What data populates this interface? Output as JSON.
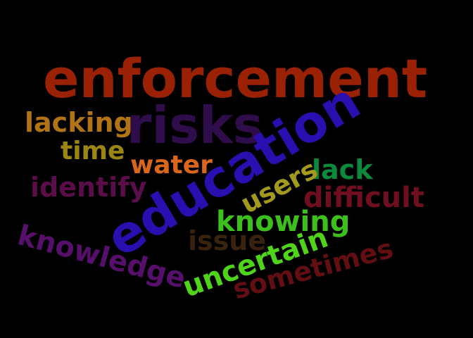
{
  "background": "#000000",
  "words": [
    {
      "text": "enforcement",
      "color": "#9b2105",
      "rotation": "horizontal"
    },
    {
      "text": "risks",
      "color": "#2f0d4a",
      "rotation": "horizontal"
    },
    {
      "text": "lacking",
      "color": "#b07416",
      "rotation": "horizontal"
    },
    {
      "text": "time",
      "color": "#9b8613",
      "rotation": "horizontal"
    },
    {
      "text": "water",
      "color": "#d9661b",
      "rotation": "horizontal"
    },
    {
      "text": "lack",
      "color": "#0b8a3e",
      "rotation": "horizontal"
    },
    {
      "text": "identify",
      "color": "#5b0d49",
      "rotation": "horizontal"
    },
    {
      "text": "education",
      "color": "#2a0fb0",
      "rotation": "angled"
    },
    {
      "text": "users",
      "color": "#a39a1d",
      "rotation": "angled"
    },
    {
      "text": "difficult",
      "color": "#6e0e1e",
      "rotation": "horizontal"
    },
    {
      "text": "knowing",
      "color": "#3cc01c",
      "rotation": "horizontal"
    },
    {
      "text": "issue",
      "color": "#3a230e",
      "rotation": "horizontal"
    },
    {
      "text": "knowledge",
      "color": "#560f6a",
      "rotation": "angled"
    },
    {
      "text": "uncertain",
      "color": "#4fd41a",
      "rotation": "angled"
    },
    {
      "text": "sometimes",
      "color": "#620e12",
      "rotation": "angled"
    }
  ]
}
